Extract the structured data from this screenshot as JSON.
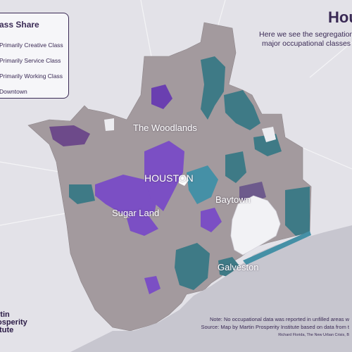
{
  "title": "Hou",
  "subtitle_lines": [
    "Here we see the segregation o",
    "major occupational classes"
  ],
  "legend": {
    "title": "ass Share",
    "items": [
      {
        "label": "Primarily Creative Class",
        "color": "#7b4fc4"
      },
      {
        "label": "Primarily Service Class",
        "color": "#3e7a86"
      },
      {
        "label": "Primarily Working Class",
        "color": "#a39a9e"
      },
      {
        "label": "Downtown",
        "color": "#ffffff"
      }
    ]
  },
  "cities": {
    "woodlands": "The Woodlands",
    "houston": "HOUSTON",
    "baytown": "Baytown",
    "sugar_land": "Sugar Land",
    "galveston": "Galveston"
  },
  "notes": {
    "line1": "Note: No occupational data was reported in unfilled areas w",
    "line2": "Source: Map by Martin Prosperity Institute based on data from t",
    "citation": "Richard Florida, The New Urban Crisis, B"
  },
  "logo": {
    "line1": "rtin",
    "line2": "osperity",
    "line3": "itute"
  },
  "colors": {
    "background": "#e3e2e8",
    "working": "#a39a9e",
    "service": "#3e7a86",
    "creative": "#7b4fc4",
    "water": "#f2f2f5",
    "text": "#3a2a55"
  }
}
